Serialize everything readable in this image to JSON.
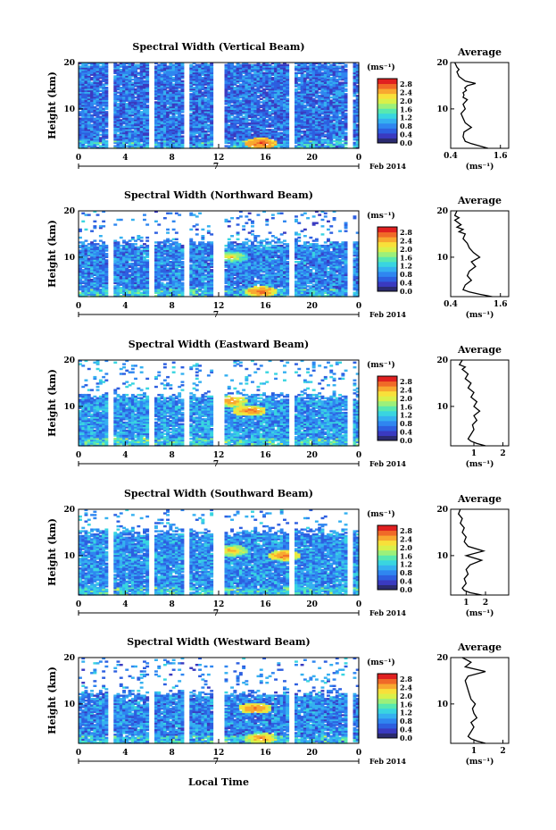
{
  "figure": {
    "date_label": "Feb 2014",
    "day_label": "7",
    "xlabel_bottom": "Local Time"
  },
  "colors": {
    "colorbar": [
      "#2b2b70",
      "#3a3ac0",
      "#2d5fe0",
      "#2f86f0",
      "#35b0f0",
      "#39d5e0",
      "#58e8b0",
      "#9cf07a",
      "#d9f04a",
      "#f8e03a",
      "#f8a830",
      "#f06a28",
      "#e02020"
    ],
    "panel_bg": "#ffffff"
  },
  "panels": [
    {
      "title": "Spectral Width (Vertical Beam)",
      "ylabel": "Height (km)",
      "yticks": [
        "20",
        "10"
      ],
      "xticks": [
        "0",
        "4",
        "8",
        "12",
        "16",
        "20",
        "0"
      ],
      "cb_unit": "(ms⁻¹)",
      "cb_ticks": [
        "2.8",
        "2.4",
        "2.0",
        "1.6",
        "1.2",
        "0.8",
        "0.4",
        "0.0"
      ],
      "avg_title": "Average",
      "avg_yticks": [
        "20",
        "10"
      ],
      "avg_xticks": [
        "0.4",
        "1.6"
      ],
      "avg_xunit": "(ms⁻¹)"
    },
    {
      "title": "Spectral Width (Northward Beam)",
      "ylabel": "Height (km)",
      "yticks": [
        "20",
        "10"
      ],
      "xticks": [
        "0",
        "4",
        "8",
        "12",
        "16",
        "20",
        "0"
      ],
      "cb_unit": "(ms⁻¹)",
      "cb_ticks": [
        "2.8",
        "2.4",
        "2.0",
        "1.6",
        "1.2",
        "0.8",
        "0.4",
        "0.0"
      ],
      "avg_title": "Average",
      "avg_yticks": [
        "20",
        "10"
      ],
      "avg_xticks": [
        "0.4",
        "1.6"
      ],
      "avg_xunit": "(ms⁻¹)"
    },
    {
      "title": "Spectral Width (Eastward Beam)",
      "ylabel": "Height (km)",
      "yticks": [
        "20",
        "10"
      ],
      "xticks": [
        "0",
        "4",
        "8",
        "12",
        "16",
        "20",
        "0"
      ],
      "cb_unit": "(ms⁻¹)",
      "cb_ticks": [
        "2.8",
        "2.4",
        "2.0",
        "1.6",
        "1.2",
        "0.8",
        "0.4",
        "0.0"
      ],
      "avg_title": "Average",
      "avg_yticks": [
        "20",
        "10"
      ],
      "avg_xticks": [
        "1",
        "2"
      ],
      "avg_xunit": "(ms⁻¹)"
    },
    {
      "title": "Spectral Width (Southward Beam)",
      "ylabel": "Height (km)",
      "yticks": [
        "20",
        "10"
      ],
      "xticks": [
        "0",
        "4",
        "8",
        "12",
        "16",
        "20",
        "0"
      ],
      "cb_unit": "(ms⁻¹)",
      "cb_ticks": [
        "2.8",
        "2.4",
        "2.0",
        "1.6",
        "1.2",
        "0.8",
        "0.4",
        "0.0"
      ],
      "avg_title": "Average",
      "avg_yticks": [
        "20",
        "10"
      ],
      "avg_xticks": [
        "1",
        "2"
      ],
      "avg_xunit": "(ms⁻¹)"
    },
    {
      "title": "Spectral Width (Westward Beam)",
      "ylabel": "Height (km)",
      "yticks": [
        "20",
        "10"
      ],
      "xticks": [
        "0",
        "4",
        "8",
        "12",
        "16",
        "20",
        "0"
      ],
      "cb_unit": "(ms⁻¹)",
      "cb_ticks": [
        "2.8",
        "2.4",
        "2.0",
        "1.6",
        "1.2",
        "0.8",
        "0.4",
        "0.0"
      ],
      "avg_title": "Average",
      "avg_yticks": [
        "20",
        "10"
      ],
      "avg_xticks": [
        "1",
        "2"
      ],
      "avg_xunit": "(ms⁻¹)"
    }
  ],
  "chart_data": [
    {
      "type": "heatmap",
      "title": "Spectral Width (Vertical Beam)",
      "xlabel": "",
      "ylabel": "Height (km)",
      "xlim": [
        0,
        24
      ],
      "ylim": [
        1.5,
        20
      ],
      "zlim": [
        0,
        3.0
      ],
      "z_unit": "(ms⁻¹)",
      "data_gaps_local_time": [
        [
          2.3,
          3.0
        ],
        [
          5.8,
          6.4
        ],
        [
          8.8,
          9.4
        ],
        [
          11.5,
          12.5
        ],
        [
          17.8,
          18.3
        ],
        [
          22.8,
          23.5
        ]
      ],
      "top_km": 20,
      "base_level": 0.6,
      "hotspots": [
        [
          15.5,
          2.5,
          2.8
        ]
      ]
    },
    {
      "type": "heatmap",
      "title": "Spectral Width (Northward Beam)",
      "xlabel": "",
      "ylabel": "Height (km)",
      "xlim": [
        0,
        24
      ],
      "ylim": [
        1.5,
        20
      ],
      "zlim": [
        0,
        3.0
      ],
      "z_unit": "(ms⁻¹)",
      "data_gaps_local_time": [
        [
          2.3,
          3.0
        ],
        [
          5.8,
          6.4
        ],
        [
          8.8,
          9.4
        ],
        [
          11.5,
          12.5
        ],
        [
          17.8,
          18.3
        ],
        [
          22.8,
          23.5
        ]
      ],
      "top_km": 13,
      "base_level": 0.7,
      "hotspots": [
        [
          15.5,
          2.5,
          2.6
        ],
        [
          13,
          10,
          2.0
        ]
      ]
    },
    {
      "type": "heatmap",
      "title": "Spectral Width (Eastward Beam)",
      "xlabel": "",
      "ylabel": "Height (km)",
      "xlim": [
        0,
        24
      ],
      "ylim": [
        1.5,
        20
      ],
      "zlim": [
        0,
        3.0
      ],
      "z_unit": "(ms⁻¹)",
      "data_gaps_local_time": [
        [
          2.3,
          3.0
        ],
        [
          5.8,
          6.4
        ],
        [
          8.8,
          9.4
        ],
        [
          11.5,
          12.5
        ],
        [
          17.8,
          18.3
        ],
        [
          22.8,
          23.5
        ]
      ],
      "top_km": 12,
      "base_level": 0.8,
      "hotspots": [
        [
          14.5,
          9,
          2.6
        ],
        [
          13,
          11,
          2.4
        ]
      ]
    },
    {
      "type": "heatmap",
      "title": "Spectral Width (Southward Beam)",
      "xlabel": "",
      "ylabel": "Height (km)",
      "xlim": [
        0,
        24
      ],
      "ylim": [
        1.5,
        20
      ],
      "zlim": [
        0,
        3.0
      ],
      "z_unit": "(ms⁻¹)",
      "data_gaps_local_time": [
        [
          2.3,
          3.0
        ],
        [
          5.8,
          6.4
        ],
        [
          8.8,
          9.4
        ],
        [
          11.5,
          12.5
        ],
        [
          17.8,
          18.3
        ],
        [
          22.8,
          23.5
        ]
      ],
      "top_km": 15,
      "base_level": 0.75,
      "hotspots": [
        [
          17.5,
          10,
          2.6
        ],
        [
          13,
          11,
          2.2
        ]
      ]
    },
    {
      "type": "heatmap",
      "title": "Spectral Width (Westward Beam)",
      "xlabel": "Local Time",
      "ylabel": "Height (km)",
      "xlim": [
        0,
        24
      ],
      "ylim": [
        1.5,
        20
      ],
      "zlim": [
        0,
        3.0
      ],
      "z_unit": "(ms⁻¹)",
      "data_gaps_local_time": [
        [
          2.3,
          3.0
        ],
        [
          5.8,
          6.4
        ],
        [
          8.8,
          9.4
        ],
        [
          11.5,
          12.5
        ],
        [
          17.8,
          18.3
        ],
        [
          22.8,
          23.5
        ]
      ],
      "top_km": 12,
      "base_level": 0.7,
      "hotspots": [
        [
          15,
          9,
          2.6
        ],
        [
          15.5,
          2.5,
          2.4
        ]
      ]
    }
  ],
  "average_profiles": [
    {
      "type": "line",
      "title": "Average",
      "xlabel": "(ms⁻¹)",
      "ylabel": "Height (km)",
      "xlim": [
        0.4,
        1.8
      ],
      "ylim": [
        1.5,
        20
      ],
      "x": [
        1.3,
        1.1,
        0.9,
        0.75,
        0.7,
        0.72,
        0.9,
        0.75,
        0.7,
        0.65,
        0.75,
        0.7,
        0.8,
        0.7,
        0.72,
        0.7,
        0.78,
        0.74,
        0.8,
        1.0,
        0.75,
        0.6,
        0.55,
        0.6,
        0.55,
        0.5
      ],
      "y": [
        1.5,
        2,
        2.5,
        3,
        4,
        5,
        6,
        7,
        8,
        9,
        10,
        11,
        12,
        12.5,
        13,
        13.5,
        14,
        14.5,
        15,
        15.5,
        16,
        17,
        18,
        18.5,
        19,
        20
      ]
    },
    {
      "type": "line",
      "title": "Average",
      "xlabel": "(ms⁻¹)",
      "ylabel": "Height (km)",
      "xlim": [
        0.4,
        1.8
      ],
      "ylim": [
        1.5,
        20
      ],
      "x": [
        1.4,
        1.1,
        0.85,
        0.7,
        0.75,
        0.9,
        0.8,
        0.85,
        1.0,
        0.9,
        1.1,
        0.95,
        0.85,
        0.8,
        0.7,
        0.75,
        0.6,
        0.7,
        0.55,
        0.65,
        0.5,
        0.6,
        0.5,
        0.55
      ],
      "y": [
        1.5,
        2,
        2.5,
        3,
        4,
        5,
        6,
        7,
        8,
        9,
        10,
        11,
        12,
        13,
        14,
        15,
        15.5,
        16,
        16.5,
        17,
        18,
        18.5,
        19,
        20
      ]
    },
    {
      "type": "line",
      "title": "Average",
      "xlabel": "(ms⁻¹)",
      "ylabel": "Height (km)",
      "xlim": [
        0.2,
        2.2
      ],
      "ylim": [
        1.5,
        20
      ],
      "x": [
        1.4,
        1.1,
        0.9,
        0.8,
        0.9,
        1.0,
        0.95,
        1.1,
        1.0,
        1.2,
        1.0,
        1.1,
        0.9,
        1.0,
        0.8,
        0.9,
        0.7,
        0.8,
        0.6,
        0.7,
        0.5,
        0.6
      ],
      "y": [
        1.5,
        2,
        2.5,
        3,
        4,
        5,
        6,
        7,
        8,
        9,
        10,
        11,
        12,
        13,
        14,
        15,
        16,
        17,
        18,
        18.5,
        19,
        20
      ]
    },
    {
      "type": "line",
      "title": "Average",
      "xlabel": "(ms⁻¹)",
      "ylabel": "Height (km)",
      "xlim": [
        0.2,
        3.2
      ],
      "ylim": [
        1.5,
        20
      ],
      "x": [
        1.8,
        1.2,
        0.9,
        0.8,
        1.0,
        0.9,
        1.1,
        1.0,
        1.2,
        1.8,
        1.0,
        1.9,
        1.1,
        0.9,
        1.0,
        0.8,
        0.9,
        0.7,
        0.8,
        0.6,
        0.7
      ],
      "y": [
        1.5,
        2,
        2.5,
        3,
        4,
        5,
        6,
        7,
        8,
        9,
        10,
        11,
        12,
        13,
        14,
        15,
        16,
        17,
        18,
        19,
        20
      ]
    },
    {
      "type": "line",
      "title": "Average",
      "xlabel": "(ms⁻¹)",
      "ylabel": "Height (km)",
      "xlim": [
        0.2,
        2.2
      ],
      "ylim": [
        1.5,
        20
      ],
      "x": [
        1.4,
        1.1,
        0.9,
        0.8,
        0.9,
        1.0,
        0.9,
        1.1,
        1.0,
        0.95,
        1.05,
        0.9,
        0.85,
        0.8,
        0.75,
        0.7,
        0.8,
        1.4,
        0.7,
        0.9,
        0.6
      ],
      "y": [
        1.5,
        2,
        2.5,
        3,
        4,
        5,
        6,
        7,
        8,
        9,
        10,
        11,
        12,
        13,
        14,
        15,
        16,
        17,
        18,
        19,
        20
      ]
    }
  ]
}
